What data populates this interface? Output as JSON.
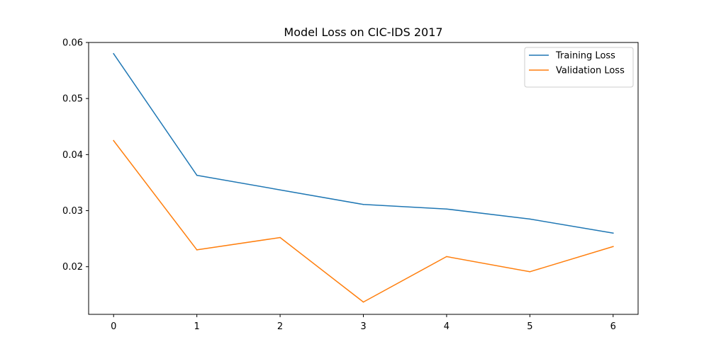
{
  "chart_data": {
    "type": "line",
    "title": "Model Loss on CIC-IDS 2017",
    "xlabel": "",
    "ylabel": "",
    "x": [
      0,
      1,
      2,
      3,
      4,
      5,
      6
    ],
    "xlim": [
      -0.3,
      6.3
    ],
    "ylim": [
      0.0115,
      0.06
    ],
    "x_ticks": [
      0,
      1,
      2,
      3,
      4,
      5,
      6
    ],
    "y_ticks": [
      0.02,
      0.03,
      0.04,
      0.05,
      0.06
    ],
    "y_tick_labels": [
      "0.02",
      "0.03",
      "0.04",
      "0.05",
      "0.06"
    ],
    "grid": false,
    "legend_position": "top-right",
    "series": [
      {
        "name": "Training Loss",
        "color": "#1f77b4",
        "values": [
          0.058,
          0.0363,
          0.0337,
          0.0311,
          0.0303,
          0.0285,
          0.026
        ]
      },
      {
        "name": "Validation Loss",
        "color": "#ff7f0e",
        "values": [
          0.0425,
          0.023,
          0.0252,
          0.0137,
          0.0218,
          0.0191,
          0.0236
        ]
      }
    ]
  }
}
